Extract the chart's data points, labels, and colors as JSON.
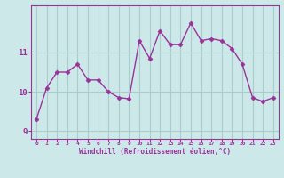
{
  "x": [
    0,
    1,
    2,
    3,
    4,
    5,
    6,
    7,
    8,
    9,
    10,
    11,
    12,
    13,
    14,
    15,
    16,
    17,
    18,
    19,
    20,
    21,
    22,
    23
  ],
  "y": [
    9.3,
    10.1,
    10.5,
    10.5,
    10.7,
    10.3,
    10.3,
    10.0,
    9.85,
    9.82,
    11.3,
    10.85,
    11.55,
    11.2,
    11.2,
    11.75,
    11.3,
    11.35,
    11.3,
    11.1,
    10.7,
    9.85,
    9.75,
    9.85
  ],
  "line_color": "#993399",
  "marker": "D",
  "marker_size": 2.5,
  "bg_color": "#cce8e8",
  "grid_color": "#aacccc",
  "xlabel": "Windchill (Refroidissement éolien,°C)",
  "xlabel_color": "#993399",
  "tick_color": "#993399",
  "label_color": "#993399",
  "ylim": [
    8.8,
    12.2
  ],
  "xlim": [
    -0.5,
    23.5
  ],
  "yticks": [
    9,
    10,
    11
  ],
  "xticks": [
    0,
    1,
    2,
    3,
    4,
    5,
    6,
    7,
    8,
    9,
    10,
    11,
    12,
    13,
    14,
    15,
    16,
    17,
    18,
    19,
    20,
    21,
    22,
    23
  ]
}
